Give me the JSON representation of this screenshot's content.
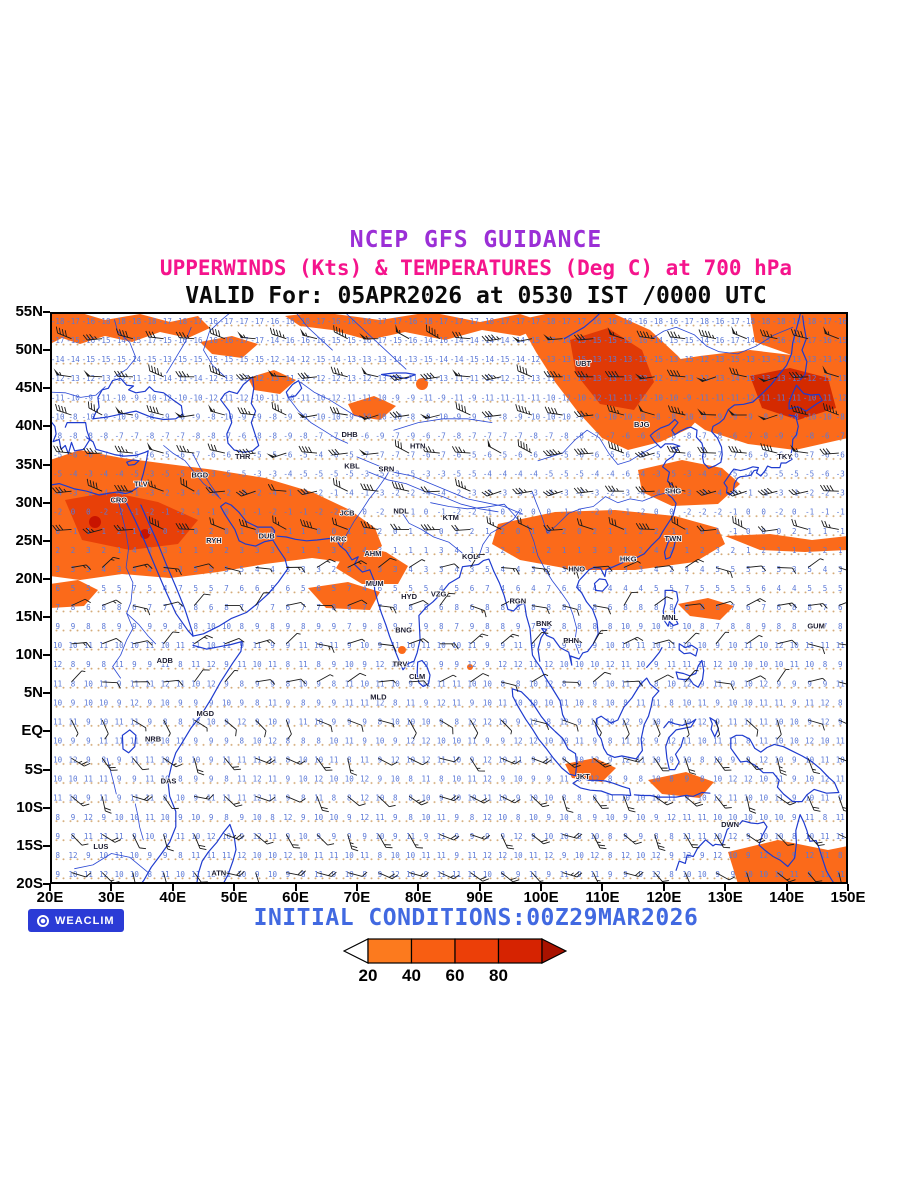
{
  "header": {
    "title1": "NCEP GFS GUIDANCE",
    "title2": "UPPERWINDS (Kts) & TEMPERATURES (Deg C) at 700 hPa",
    "title3": "VALID For: 05APR2026 at 0530 IST /0000 UTC",
    "title1_color": "#9b2fd6",
    "title2_color": "#f5148c"
  },
  "footer": {
    "initial_conditions": "INITIAL CONDITIONS:00Z29MAR2026",
    "logo_text": "WEACLIM"
  },
  "colorbar": {
    "labels": [
      "20",
      "40",
      "60",
      "80"
    ],
    "colors": [
      "#fc7a1e",
      "#f85e12",
      "#ec3f08",
      "#d62301"
    ],
    "left_arrow_color": "#ffffff",
    "right_arrow_color": "#a81200"
  },
  "map": {
    "lat_tick_labels": [
      "55N",
      "50N",
      "45N",
      "40N",
      "35N",
      "30N",
      "25N",
      "20N",
      "15N",
      "10N",
      "5N",
      "EQ",
      "5S",
      "10S",
      "15S",
      "20S"
    ],
    "lat_tick_values": [
      55,
      50,
      45,
      40,
      35,
      30,
      25,
      20,
      15,
      10,
      5,
      0,
      -5,
      -10,
      -15,
      -20
    ],
    "lon_tick_labels": [
      "20E",
      "30E",
      "40E",
      "50E",
      "60E",
      "70E",
      "80E",
      "90E",
      "100E",
      "110E",
      "120E",
      "130E",
      "140E",
      "150E"
    ],
    "lon_tick_values": [
      20,
      30,
      40,
      50,
      60,
      70,
      80,
      90,
      100,
      110,
      120,
      130,
      140,
      150
    ],
    "stations": [
      {
        "code": "THR",
        "lon": 51.4,
        "lat": 35.7
      },
      {
        "code": "TLV",
        "lon": 34.8,
        "lat": 32.1
      },
      {
        "code": "CRO",
        "lon": 31.2,
        "lat": 30.0
      },
      {
        "code": "BGD",
        "lon": 44.4,
        "lat": 33.3
      },
      {
        "code": "RYH",
        "lon": 46.7,
        "lat": 24.7
      },
      {
        "code": "DUB",
        "lon": 55.3,
        "lat": 25.3
      },
      {
        "code": "DHB",
        "lon": 68.8,
        "lat": 38.6
      },
      {
        "code": "KBL",
        "lon": 69.2,
        "lat": 34.5
      },
      {
        "code": "SRN",
        "lon": 74.8,
        "lat": 34.1
      },
      {
        "code": "HTN",
        "lon": 79.9,
        "lat": 37.1
      },
      {
        "code": "JCB",
        "lon": 68.4,
        "lat": 28.3
      },
      {
        "code": "NDL",
        "lon": 77.2,
        "lat": 28.6
      },
      {
        "code": "KTM",
        "lon": 85.3,
        "lat": 27.7
      },
      {
        "code": "KRC",
        "lon": 67.0,
        "lat": 24.9
      },
      {
        "code": "AHM",
        "lon": 72.6,
        "lat": 23.0
      },
      {
        "code": "KOL",
        "lon": 88.4,
        "lat": 22.6
      },
      {
        "code": "MUM",
        "lon": 72.9,
        "lat": 19.1
      },
      {
        "code": "HYD",
        "lon": 78.5,
        "lat": 17.4
      },
      {
        "code": "VZG",
        "lon": 83.3,
        "lat": 17.7
      },
      {
        "code": "RGN",
        "lon": 96.2,
        "lat": 16.8
      },
      {
        "code": "BNG",
        "lon": 77.6,
        "lat": 13.0
      },
      {
        "code": "BNK",
        "lon": 100.5,
        "lat": 13.8
      },
      {
        "code": "PHN",
        "lon": 104.9,
        "lat": 11.6
      },
      {
        "code": "MNL",
        "lon": 121.0,
        "lat": 14.6
      },
      {
        "code": "GUM",
        "lon": 144.8,
        "lat": 13.5
      },
      {
        "code": "TRV",
        "lon": 77.0,
        "lat": 8.5
      },
      {
        "code": "CLM",
        "lon": 79.8,
        "lat": 6.9
      },
      {
        "code": "MLD",
        "lon": 73.5,
        "lat": 4.2
      },
      {
        "code": "ADB",
        "lon": 38.7,
        "lat": 9.0
      },
      {
        "code": "MGD",
        "lon": 45.3,
        "lat": 2.0
      },
      {
        "code": "NRB",
        "lon": 36.8,
        "lat": -1.3
      },
      {
        "code": "DAS",
        "lon": 39.3,
        "lat": -6.8
      },
      {
        "code": "LUS",
        "lon": 28.3,
        "lat": -15.4
      },
      {
        "code": "ATN",
        "lon": 47.5,
        "lat": -18.9
      },
      {
        "code": "JKT",
        "lon": 106.8,
        "lat": -6.2
      },
      {
        "code": "DWN",
        "lon": 130.8,
        "lat": -12.5
      },
      {
        "code": "UBT",
        "lon": 106.9,
        "lat": 47.9
      },
      {
        "code": "BJG",
        "lon": 116.4,
        "lat": 39.9
      },
      {
        "code": "TKY",
        "lon": 139.7,
        "lat": 35.7
      },
      {
        "code": "SHG",
        "lon": 121.5,
        "lat": 31.2
      },
      {
        "code": "TWN",
        "lon": 121.5,
        "lat": 25.0
      },
      {
        "code": "HKG",
        "lon": 114.2,
        "lat": 22.3
      },
      {
        "code": "HNO",
        "lon": 105.8,
        "lat": 21.0
      }
    ]
  },
  "chart_data": {
    "type": "heatmap",
    "subtype": "filled-contour meteorological map with wind barbs and temperature values",
    "title": "NCEP GFS GUIDANCE",
    "subtitle": "UPPERWINDS (Kts) & TEMPERATURES (Deg C) at 700 hPa",
    "valid": "05APR2026 at 0530 IST /0000 UTC",
    "initial_conditions": "00Z29MAR2026",
    "pressure_level": "700 hPa",
    "shaded_variable": "wind speed (Kts)",
    "shading_levels": [
      20,
      40,
      60,
      80
    ],
    "shading_colors": [
      "#fc7a1e",
      "#f85e12",
      "#ec3f08",
      "#d62301"
    ],
    "x_axis": {
      "label": "longitude",
      "range_deg_east": [
        20,
        150
      ],
      "ticks": [
        "20E",
        "30E",
        "40E",
        "50E",
        "60E",
        "70E",
        "80E",
        "90E",
        "100E",
        "110E",
        "120E",
        "130E",
        "140E",
        "150E"
      ]
    },
    "y_axis": {
      "label": "latitude",
      "range_deg_north": [
        55,
        -20
      ],
      "ticks": [
        "55N",
        "50N",
        "45N",
        "40N",
        "35N",
        "30N",
        "25N",
        "20N",
        "15N",
        "10N",
        "5N",
        "EQ",
        "5S",
        "10S",
        "15S",
        "20S"
      ]
    },
    "overlays": [
      "wind barbs (Kts)",
      "temperature values (Deg C)",
      "coastlines and rivers (blue)",
      "station identifiers"
    ],
    "temperature_values_range_degC": [
      -18,
      12
    ],
    "legend_position": "bottom-center",
    "grid": "dotted tan latitude rows"
  }
}
